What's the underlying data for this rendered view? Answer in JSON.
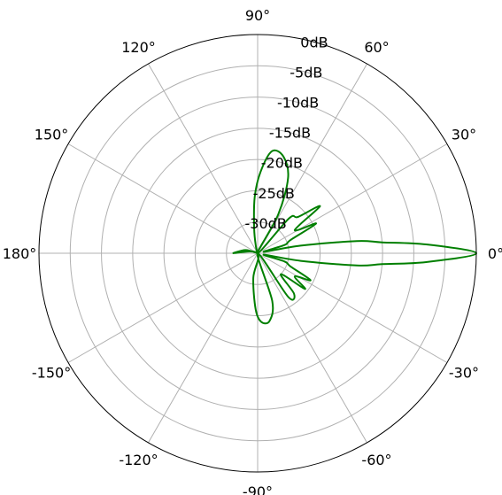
{
  "chart_data": {
    "type": "line",
    "projection": "polar",
    "title": "",
    "xlabel": "",
    "ylabel": "",
    "grid": true,
    "theta_unit": "degrees",
    "theta_direction": "counterclockwise",
    "theta_zero_location": "right",
    "theta_ticks": [
      "0°",
      "30°",
      "60°",
      "90°",
      "120°",
      "150°",
      "180°",
      "-150°",
      "-120°",
      "-90°",
      "-60°",
      "-30°"
    ],
    "theta_tick_values": [
      0,
      30,
      60,
      90,
      120,
      150,
      180,
      -150,
      -120,
      -90,
      -60,
      -30
    ],
    "r_unit": "dB",
    "r_range": [
      -35,
      0
    ],
    "r_ticks": [
      "0dB",
      "-5dB",
      "-10dB",
      "-15dB",
      "-20dB",
      "-25dB",
      "-30dB"
    ],
    "r_tick_values": [
      0,
      -5,
      -10,
      -15,
      -20,
      -25,
      -30
    ],
    "r_label_angle_deg": 75,
    "grid_color": "#b0b0b0",
    "series": [
      {
        "color": "#007f00",
        "theta": [
          -180,
          -120,
          -100,
          -92,
          -87,
          -80,
          -73,
          -65,
          -55,
          -48,
          -42,
          -37,
          -32,
          -27,
          -22,
          -17,
          -13,
          -10,
          -7,
          -5,
          -3,
          0,
          3,
          5,
          7,
          10,
          13,
          17,
          22,
          27,
          32,
          37,
          42,
          48,
          55,
          62,
          68,
          75,
          82,
          88,
          93,
          98,
          105,
          115,
          125,
          140,
          165,
          180
        ],
        "r": [
          -31,
          -35,
          -31,
          -26,
          -24,
          -24,
          -27,
          -35,
          -26.5,
          -26.3,
          -30,
          -25.5,
          -28,
          -25.5,
          -29.3,
          -30.5,
          -34,
          -28,
          -19,
          -15,
          -8,
          0,
          -8,
          -15,
          -19,
          -28,
          -34,
          -30.5,
          -29.3,
          -24.5,
          -28,
          -22.5,
          -26.3,
          -27.5,
          -35,
          -28,
          -22,
          -19,
          -18.5,
          -22,
          -26,
          -31,
          -34,
          -35,
          -35,
          -35,
          -33,
          -31
        ]
      }
    ]
  }
}
